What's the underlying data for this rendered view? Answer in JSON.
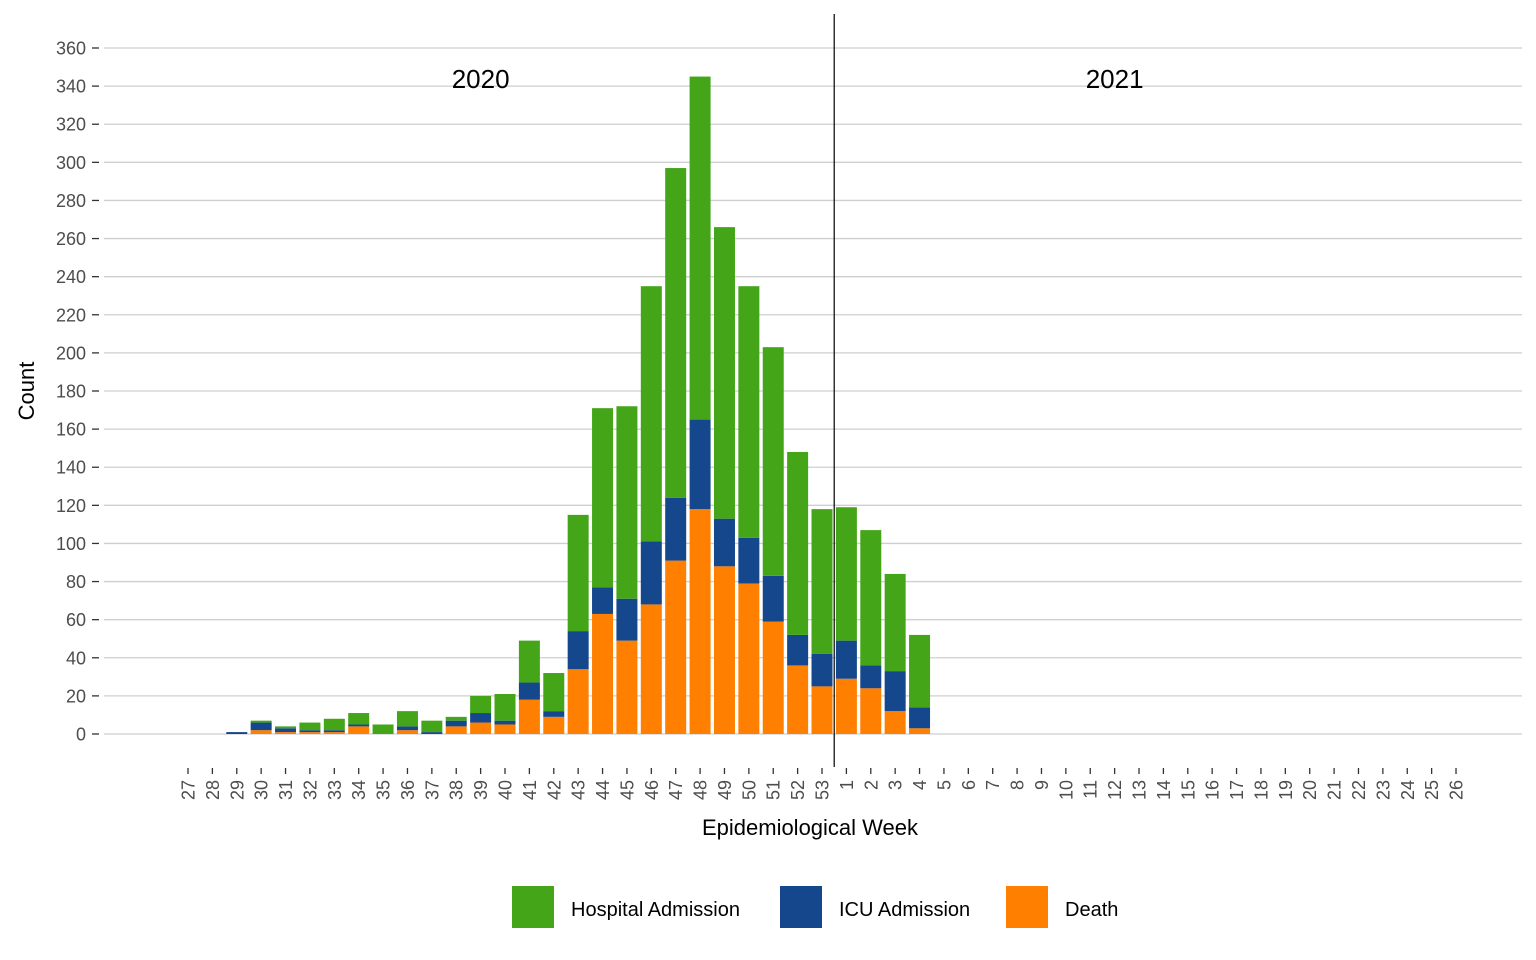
{
  "chart_data": {
    "type": "bar",
    "stacked": true,
    "title": "",
    "xlabel": "Epidemiological Week",
    "ylabel": "Count",
    "ylim": [
      0,
      360
    ],
    "ytick_step": 20,
    "grid": "horizontal",
    "legend_position": "bottom",
    "categories": [
      "27",
      "28",
      "29",
      "30",
      "31",
      "32",
      "33",
      "34",
      "35",
      "36",
      "37",
      "38",
      "39",
      "40",
      "41",
      "42",
      "43",
      "44",
      "45",
      "46",
      "47",
      "48",
      "49",
      "50",
      "51",
      "52",
      "53",
      "1",
      "2",
      "3",
      "4",
      "5",
      "6",
      "7",
      "8",
      "9",
      "10",
      "11",
      "12",
      "13",
      "14",
      "15",
      "16",
      "17",
      "18",
      "19",
      "20",
      "21",
      "22",
      "23",
      "24",
      "25",
      "26"
    ],
    "year_divider_after": "53",
    "year_labels": [
      {
        "label": "2020",
        "at_week": "39"
      },
      {
        "label": "2021",
        "at_week": "12"
      }
    ],
    "series": [
      {
        "name": "Death",
        "color": "#ff7f00",
        "values": [
          0,
          0,
          0,
          2,
          1,
          1,
          1,
          4,
          0,
          2,
          0,
          4,
          6,
          5,
          18,
          9,
          34,
          63,
          49,
          68,
          91,
          118,
          88,
          79,
          59,
          36,
          25,
          29,
          24,
          12,
          3,
          0,
          0,
          0,
          0,
          0,
          0,
          0,
          0,
          0,
          0,
          0,
          0,
          0,
          0,
          0,
          0,
          0,
          0,
          0,
          0,
          0,
          0
        ]
      },
      {
        "name": "ICU Admission",
        "color": "#15478c",
        "values": [
          0,
          0,
          1,
          4,
          2,
          1,
          1,
          1,
          0,
          2,
          1,
          3,
          5,
          2,
          9,
          3,
          20,
          14,
          22,
          33,
          33,
          47,
          25,
          24,
          24,
          16,
          17,
          20,
          12,
          21,
          11,
          0,
          0,
          0,
          0,
          0,
          0,
          0,
          0,
          0,
          0,
          0,
          0,
          0,
          0,
          0,
          0,
          0,
          0,
          0,
          0,
          0,
          0
        ]
      },
      {
        "name": "Hospital Admission",
        "color": "#44a519",
        "values": [
          0,
          0,
          0,
          1,
          1,
          4,
          6,
          6,
          5,
          8,
          6,
          2,
          9,
          14,
          22,
          20,
          61,
          94,
          101,
          134,
          173,
          180,
          153,
          132,
          120,
          96,
          76,
          70,
          71,
          51,
          38,
          0,
          0,
          0,
          0,
          0,
          0,
          0,
          0,
          0,
          0,
          0,
          0,
          0,
          0,
          0,
          0,
          0,
          0,
          0,
          0,
          0,
          0
        ]
      }
    ],
    "legend": [
      {
        "name": "Hospital Admission",
        "color": "#44a519"
      },
      {
        "name": "ICU Admission",
        "color": "#15478c"
      },
      {
        "name": "Death",
        "color": "#ff7f00"
      }
    ]
  }
}
